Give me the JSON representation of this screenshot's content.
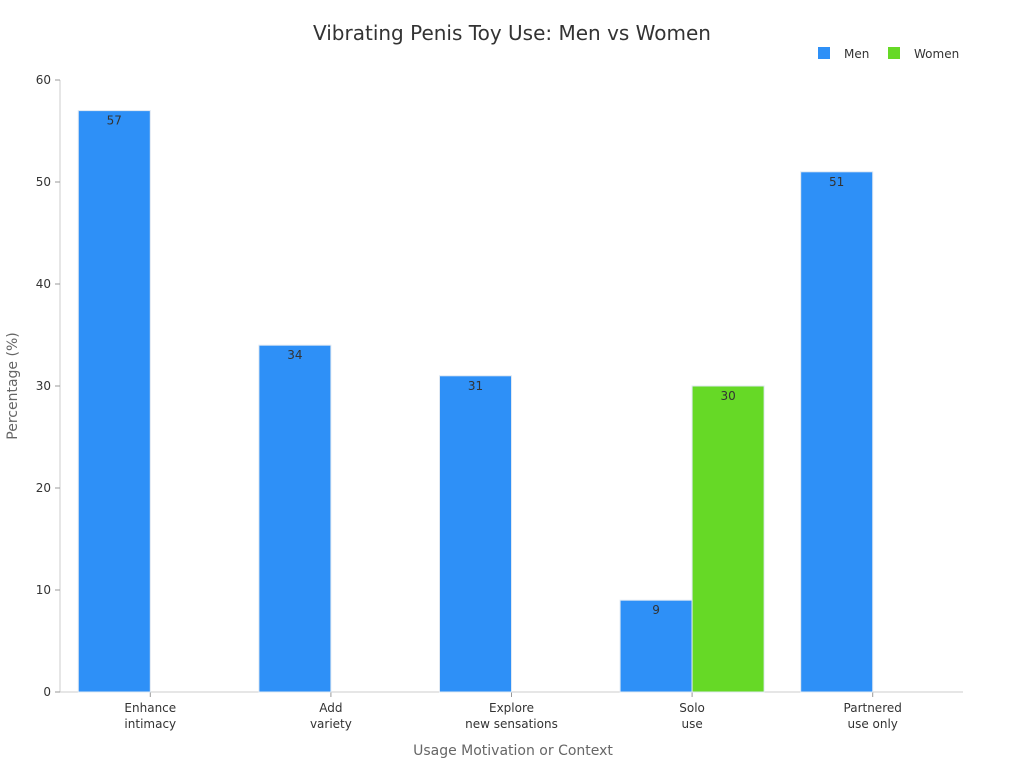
{
  "chart_data": {
    "type": "bar",
    "title": "Vibrating Penis Toy Use: Men vs Women",
    "xlabel": "Usage Motivation or Context",
    "ylabel": "Percentage (%)",
    "ylim": [
      0,
      60
    ],
    "yticks": [
      0,
      10,
      20,
      30,
      40,
      50,
      60
    ],
    "categories": [
      [
        "Enhance",
        "intimacy"
      ],
      [
        "Add",
        "variety"
      ],
      [
        "Explore",
        "new sensations"
      ],
      [
        "Solo",
        "use"
      ],
      [
        "Partnered",
        "use only"
      ]
    ],
    "series": [
      {
        "name": "Men",
        "color": "#2e90f7",
        "values": [
          57,
          34,
          31,
          9,
          51
        ]
      },
      {
        "name": "Women",
        "color": "#66d926",
        "values": [
          null,
          null,
          null,
          30,
          null
        ]
      }
    ],
    "legend_position": "top-right",
    "grid": false
  }
}
